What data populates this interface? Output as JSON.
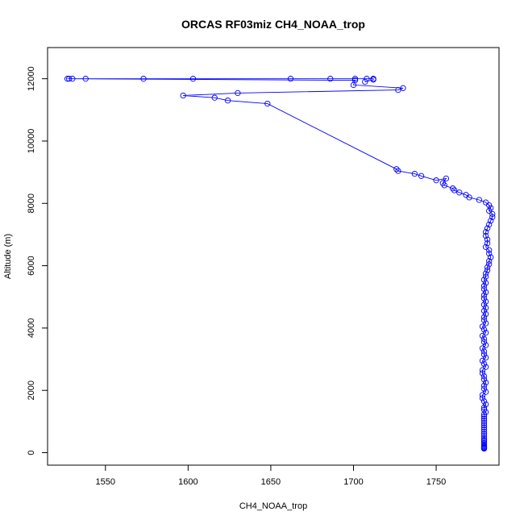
{
  "chart_data": {
    "type": "line",
    "title": "ORCAS RF03miz CH4_NOAA_trop",
    "xlabel": "CH4_NOAA_trop",
    "ylabel": "Altitude (m)",
    "xlim": [
      1515,
      1788
    ],
    "ylim": [
      -400,
      13000
    ],
    "x_ticks": [
      1550,
      1600,
      1650,
      1700,
      1750
    ],
    "y_ticks": [
      0,
      2000,
      4000,
      6000,
      8000,
      10000,
      12000
    ],
    "grid": false,
    "legend": "none",
    "color": "#0000ff",
    "marker": "open-circle",
    "series": [
      {
        "x": [
          1707,
          1712,
          1712,
          1708,
          1701,
          1686,
          1662,
          1603,
          1573,
          1538,
          1530,
          1527,
          1528,
          1701,
          1700,
          1730,
          1727,
          1630,
          1597,
          1616,
          1624,
          1648,
          1726,
          1727,
          1737,
          1741,
          1750,
          1756,
          1754,
          1755,
          1760,
          1761,
          1764,
          1768,
          1770,
          1776,
          1780,
          1782,
          1783,
          1782,
          1784,
          1784,
          1783,
          1782,
          1781,
          1780,
          1780,
          1781,
          1781,
          1780,
          1782,
          1782,
          1783,
          1782,
          1782,
          1781,
          1781,
          1780,
          1780,
          1779,
          1780,
          1779,
          1779,
          1780,
          1779,
          1779,
          1780,
          1779,
          1780,
          1779,
          1780,
          1779,
          1779,
          1780,
          1778,
          1779,
          1780,
          1778,
          1779,
          1779,
          1780,
          1778,
          1779,
          1779,
          1780,
          1778,
          1779,
          1780,
          1778,
          1778,
          1779,
          1779,
          1780,
          1779,
          1779,
          1780,
          1778,
          1778,
          1779,
          1780,
          1779,
          1779,
          1780,
          1779,
          1779,
          1779,
          1779,
          1779,
          1779,
          1779,
          1779,
          1779,
          1779,
          1779,
          1779,
          1779,
          1779,
          1779,
          1779,
          1779,
          1779,
          1779,
          1779,
          1779,
          1779
        ],
        "y": [
          11900,
          11970,
          12000,
          12000,
          12000,
          12000,
          12000,
          12000,
          12000,
          12000,
          12000,
          12000,
          12000,
          11950,
          11800,
          11700,
          11640,
          11540,
          11460,
          11390,
          11300,
          11200,
          9100,
          9040,
          8950,
          8880,
          8740,
          8800,
          8650,
          8580,
          8480,
          8420,
          8350,
          8270,
          8190,
          8110,
          8030,
          7940,
          7850,
          7760,
          7660,
          7560,
          7440,
          7320,
          7200,
          7080,
          6960,
          6840,
          6720,
          6600,
          6500,
          6390,
          6270,
          6150,
          6050,
          5950,
          5850,
          5750,
          5650,
          5550,
          5450,
          5350,
          5250,
          5150,
          5050,
          4950,
          4850,
          4750,
          4650,
          4550,
          4450,
          4350,
          4250,
          4150,
          4050,
          3950,
          3850,
          3750,
          3650,
          3550,
          3450,
          3350,
          3250,
          3150,
          3050,
          2950,
          2850,
          2750,
          2650,
          2550,
          2450,
          2350,
          2250,
          2150,
          2050,
          1950,
          1850,
          1750,
          1650,
          1550,
          1450,
          1380,
          1300,
          1230,
          1160,
          1090,
          1020,
          950,
          880,
          810,
          740,
          670,
          600,
          530,
          470,
          410,
          360,
          310,
          270,
          230,
          200,
          175,
          155,
          140,
          130
        ]
      }
    ]
  }
}
